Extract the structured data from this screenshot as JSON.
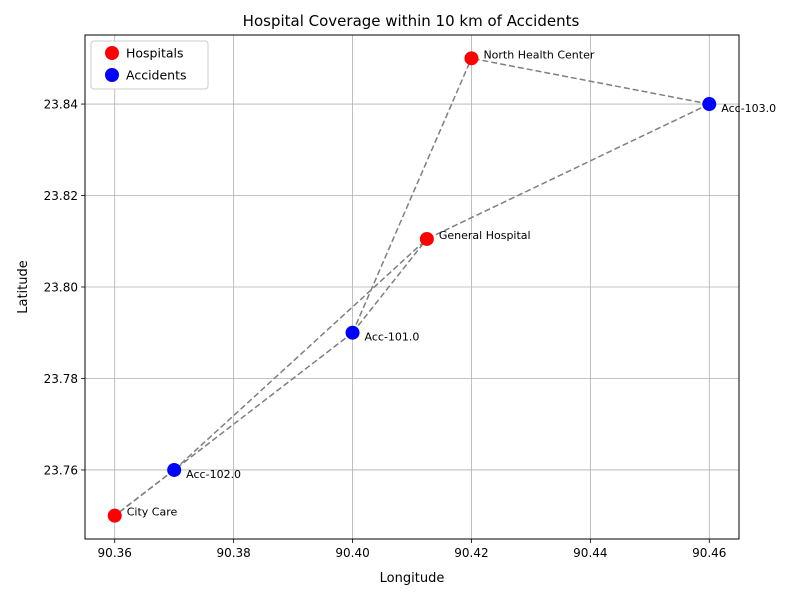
{
  "chart_data": {
    "type": "scatter",
    "title": "Hospital Coverage within 10 km of Accidents",
    "xlabel": "Longitude",
    "ylabel": "Latitude",
    "xlim": [
      90.355,
      90.465
    ],
    "ylim": [
      23.7449,
      23.8551
    ],
    "xticks": [
      90.36,
      90.38,
      90.4,
      90.42,
      90.44,
      90.46
    ],
    "xtick_labels": [
      "90.36",
      "90.38",
      "90.40",
      "90.42",
      "90.44",
      "90.46"
    ],
    "yticks": [
      23.76,
      23.78,
      23.8,
      23.82,
      23.84
    ],
    "ytick_labels": [
      "23.76",
      "23.78",
      "23.80",
      "23.82",
      "23.84"
    ],
    "grid": true,
    "legend_position": "top-left",
    "series": [
      {
        "name": "Hospitals",
        "color": "#ff0000",
        "points": [
          {
            "label": "City Care",
            "x": 90.36,
            "y": 23.75
          },
          {
            "label": "General Hospital",
            "x": 90.4125,
            "y": 23.8105
          },
          {
            "label": "North Health Center",
            "x": 90.42,
            "y": 23.85
          }
        ]
      },
      {
        "name": "Accidents",
        "color": "#0000ff",
        "points": [
          {
            "label": "Acc-101.0",
            "x": 90.4,
            "y": 23.79
          },
          {
            "label": "Acc-102.0",
            "x": 90.37,
            "y": 23.76
          },
          {
            "label": "Acc-103.0",
            "x": 90.46,
            "y": 23.84
          }
        ]
      }
    ],
    "connections": [
      {
        "from": "Acc-101.0",
        "to": "City Care"
      },
      {
        "from": "Acc-101.0",
        "to": "General Hospital"
      },
      {
        "from": "Acc-101.0",
        "to": "North Health Center"
      },
      {
        "from": "Acc-102.0",
        "to": "City Care"
      },
      {
        "from": "Acc-102.0",
        "to": "General Hospital"
      },
      {
        "from": "Acc-103.0",
        "to": "General Hospital"
      },
      {
        "from": "Acc-103.0",
        "to": "North Health Center"
      }
    ],
    "connection_color": "#7f7f7f"
  }
}
